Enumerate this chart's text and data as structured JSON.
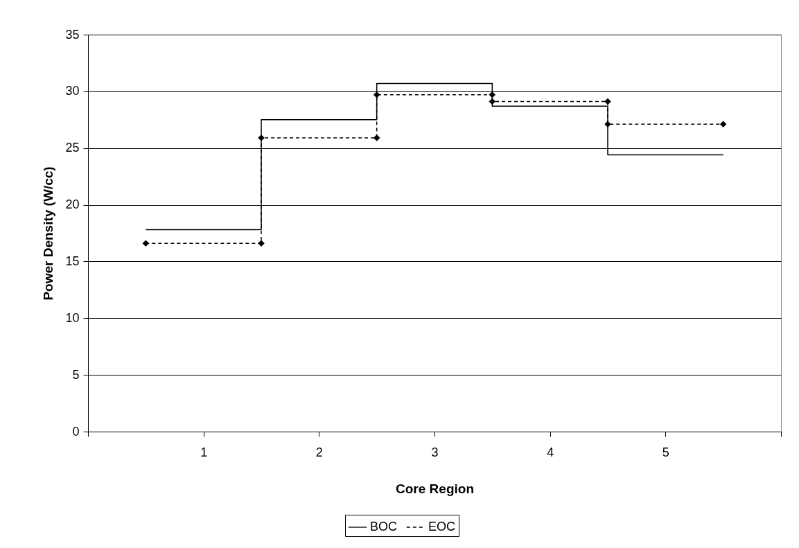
{
  "chart_data": {
    "type": "line",
    "xlabel": "Core Region",
    "ylabel": "Power Density (W/cc)",
    "xlim": [
      0,
      6
    ],
    "xticks": [
      {
        "value": 0,
        "label": null
      },
      1,
      2,
      3,
      4,
      5,
      {
        "value": 6,
        "label": null
      }
    ],
    "ylim": [
      0,
      35
    ],
    "yticks": [
      0,
      5,
      10,
      15,
      20,
      25,
      30,
      35
    ],
    "grid": "y",
    "legend": "bottom",
    "series": [
      {
        "name": "BOC",
        "color": "#000000",
        "line_style": "solid",
        "marker": "none",
        "x": [
          0.5,
          1.5,
          1.5,
          2.5,
          2.5,
          3.5,
          3.5,
          4.5,
          4.5,
          5.5
        ],
        "values": [
          17.8,
          17.8,
          27.5,
          27.5,
          30.7,
          30.7,
          28.7,
          28.7,
          24.4,
          24.4
        ]
      },
      {
        "name": "EOC",
        "color": "#000000",
        "line_style": "dashed",
        "marker": "diamond",
        "x": [
          0.5,
          1.5,
          1.5,
          2.5,
          2.5,
          3.5,
          3.5,
          4.5,
          4.5,
          5.5
        ],
        "values": [
          16.6,
          16.6,
          25.9,
          25.9,
          29.7,
          29.7,
          29.1,
          29.1,
          27.1,
          27.1
        ]
      }
    ]
  }
}
